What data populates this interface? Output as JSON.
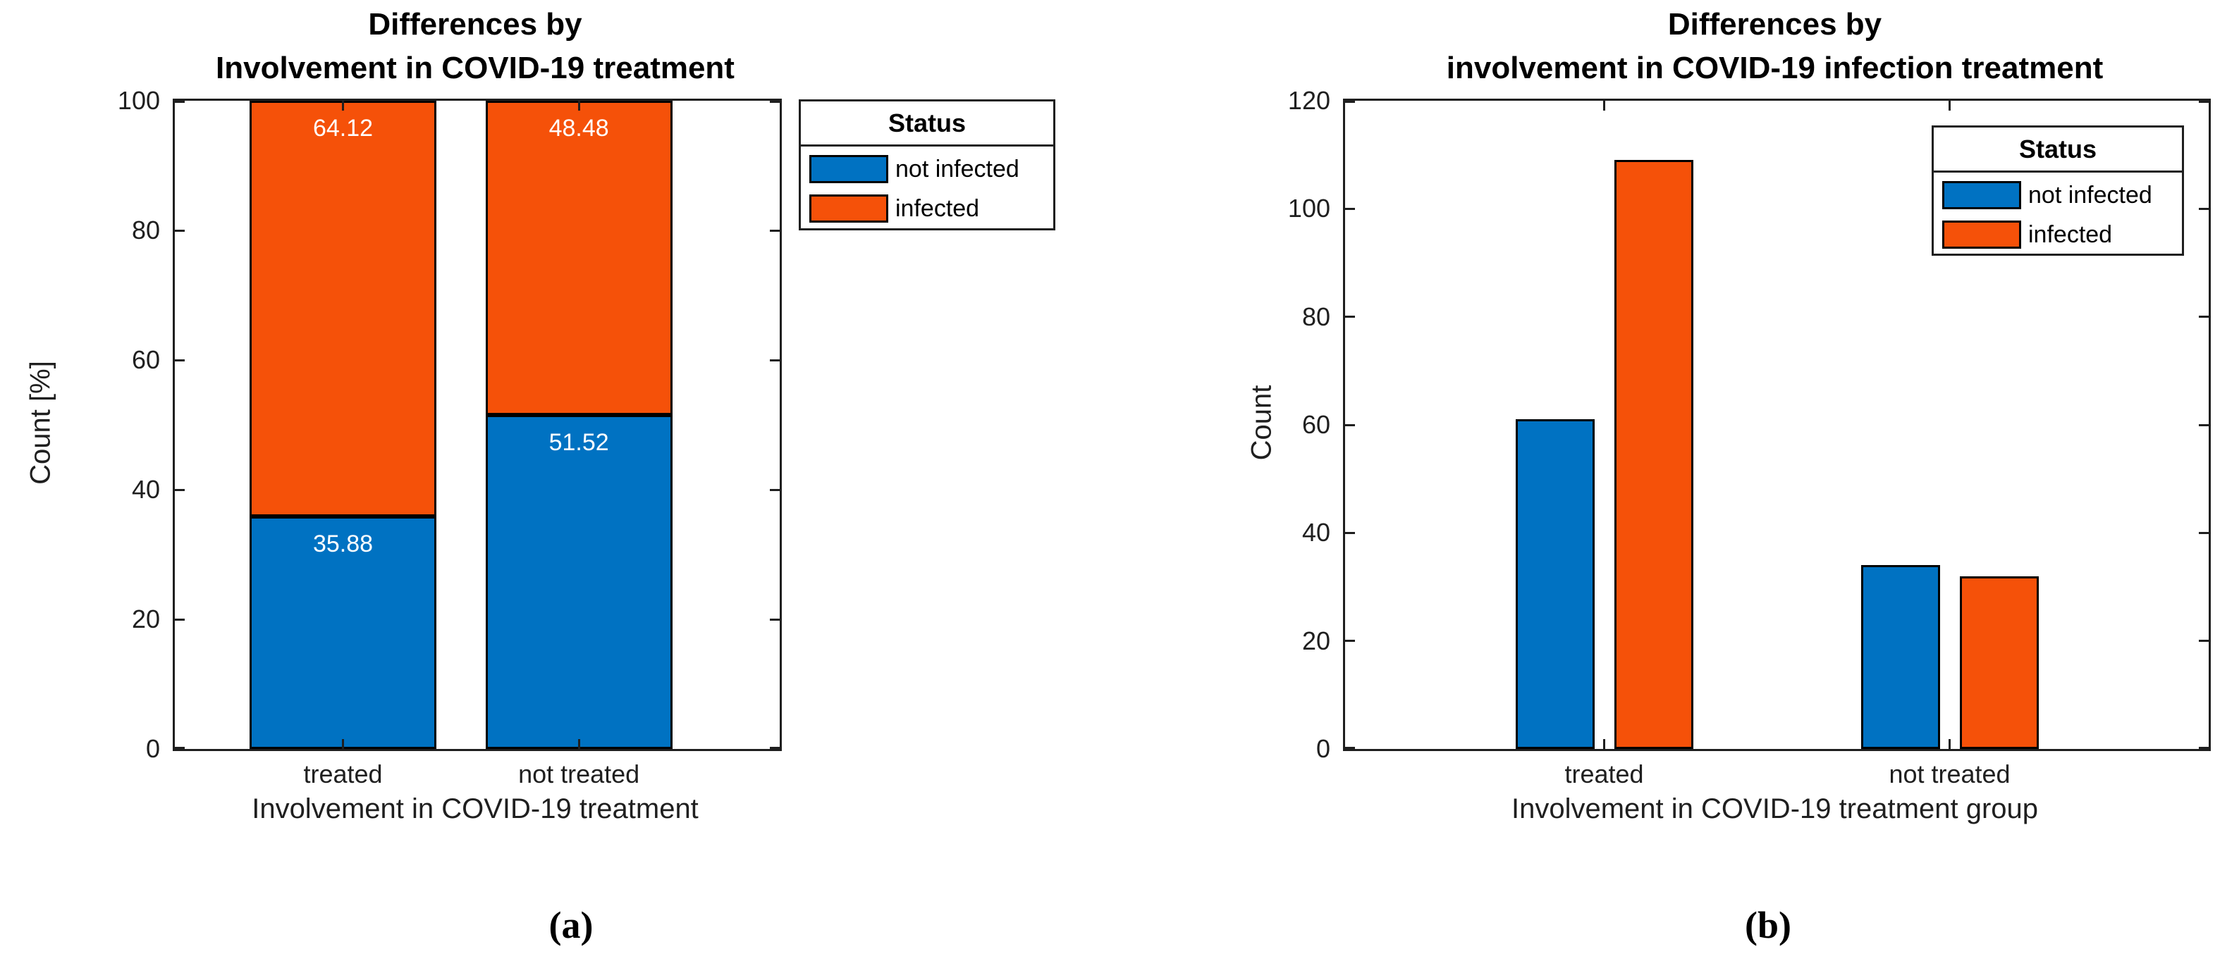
{
  "colors": {
    "not_infected_blue": "#0072C2",
    "infected_orange": "#F55109",
    "axis": "#1f1f1f",
    "bar_edge": "#000000",
    "value_label_text": "#ffffff",
    "background": "#ffffff"
  },
  "chart_data": [
    {
      "id": "a",
      "type": "bar",
      "stacked": true,
      "title_lines": [
        "Differences by",
        "Involvement in COVID-19 treatment"
      ],
      "xlabel": "Involvement in COVID-19 treatment",
      "ylabel": "Count [%]",
      "categories": [
        "treated",
        "not treated"
      ],
      "series": [
        {
          "name": "not infected",
          "color": "#0072C2",
          "values": [
            35.88,
            51.52
          ]
        },
        {
          "name": "infected",
          "color": "#F55109",
          "values": [
            64.12,
            48.48
          ]
        }
      ],
      "value_labels": [
        [
          "35.88",
          "51.52"
        ],
        [
          "64.12",
          "48.48"
        ]
      ],
      "ylim": [
        0,
        100
      ],
      "yticks": [
        0,
        20,
        40,
        60,
        80,
        100
      ],
      "legend": {
        "title": "Status",
        "position": "outside-right"
      },
      "grid": false,
      "panel_label": "(a)"
    },
    {
      "id": "b",
      "type": "bar",
      "stacked": false,
      "title_lines": [
        "Differences by",
        "involvement in COVID-19 infection treatment"
      ],
      "xlabel": "Involvement in COVID-19 treatment group",
      "ylabel": "Count",
      "categories": [
        "treated",
        "not treated"
      ],
      "series": [
        {
          "name": "not infected",
          "color": "#0072C2",
          "values": [
            61,
            34
          ]
        },
        {
          "name": "infected",
          "color": "#F55109",
          "values": [
            109,
            32
          ]
        }
      ],
      "ylim": [
        0,
        120
      ],
      "yticks": [
        0,
        20,
        40,
        60,
        80,
        100,
        120
      ],
      "legend": {
        "title": "Status",
        "position": "inside-top-right"
      },
      "grid": false,
      "panel_label": "(b)"
    }
  ]
}
